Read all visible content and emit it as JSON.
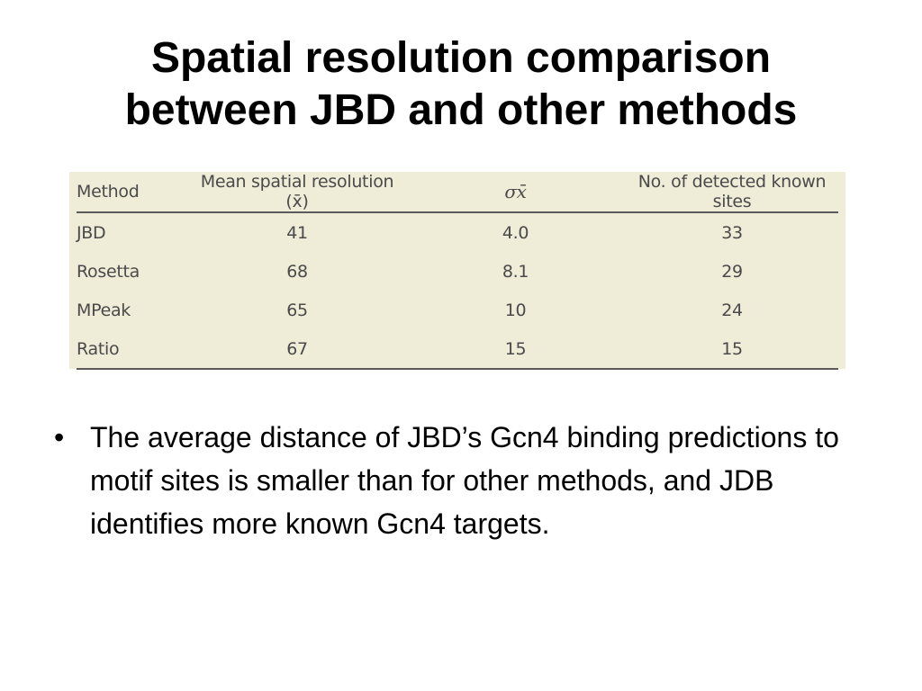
{
  "slide": {
    "title_line1": "Spatial resolution comparison",
    "title_line2": "between JBD and other methods"
  },
  "table": {
    "headers": [
      "Method",
      "Mean spatial resolution (x̄)",
      "σx̄",
      "No. of detected known sites"
    ],
    "rows": [
      [
        "JBD",
        "41",
        "4.0",
        "33"
      ],
      [
        "Rosetta",
        "68",
        "8.1",
        "29"
      ],
      [
        "MPeak",
        "65",
        "10",
        "24"
      ],
      [
        "Ratio",
        "67",
        "15",
        "15"
      ]
    ],
    "background_color": "#efecd8"
  },
  "bullets": [
    "The average distance of JBD’s Gcn4 binding predictions to motif sites is smaller than for other methods, and JDB identifies more known Gcn4 targets."
  ],
  "bullet_symbol": "•"
}
